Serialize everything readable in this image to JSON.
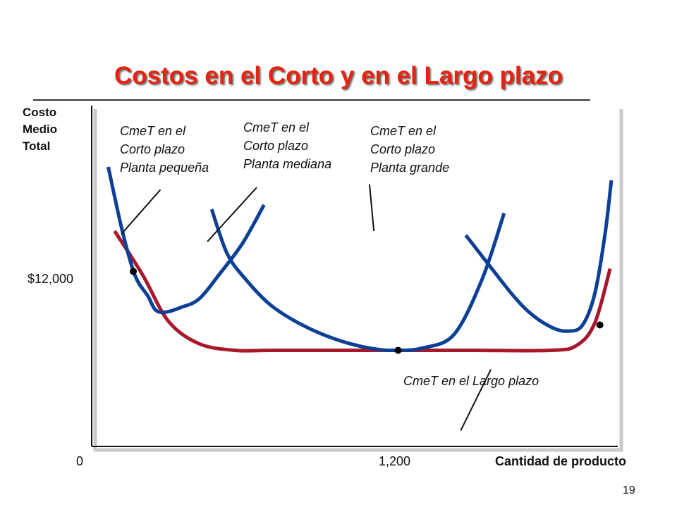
{
  "slide": {
    "title": "Costos en el Corto y en el Largo plazo",
    "page_number": "19",
    "title_color": "#e8220f"
  },
  "chart_data": {
    "type": "line",
    "title": "Costos en el Corto y en el Largo plazo",
    "ylabel": "Costo\nMedio\nTotal",
    "xlabel": "Cantidad de producto",
    "origin_label": "0",
    "x_tick": {
      "label": "1,200",
      "value": 1200
    },
    "y_tick": {
      "label": "$12,000",
      "value": 12000
    },
    "xlim": [
      0,
      2060
    ],
    "ylim": [
      8270,
      20500
    ],
    "grid": false,
    "series": [
      {
        "name": "CmeT en el Largo plazo",
        "role": "long_run",
        "color": "#a8182c",
        "x": [
          90,
          200,
          300,
          420,
          560,
          700,
          900,
          1200,
          1500,
          1800,
          1900,
          1970,
          2030
        ],
        "y": [
          16000,
          14420,
          12770,
          11960,
          11720,
          11720,
          11720,
          11720,
          11720,
          11720,
          11900,
          12700,
          14650
        ]
      },
      {
        "name": "CmeT en el Corto plazo Planta pequeña",
        "role": "short_run",
        "color": "#0b4096",
        "x": [
          65,
          120,
          170,
          220,
          250,
          290,
          350,
          420,
          500,
          590,
          675
        ],
        "y": [
          18300,
          16000,
          14400,
          13670,
          13170,
          13090,
          13260,
          13560,
          14450,
          15550,
          16940
        ]
      },
      {
        "name": "CmeT en el Corto plazo Planta mediana",
        "role": "short_run",
        "color": "#0b4096",
        "x": [
          470,
          530,
          600,
          700,
          820,
          960,
          1100,
          1200,
          1300,
          1420,
          1530,
          1615
        ],
        "y": [
          16780,
          15200,
          14300,
          13350,
          12650,
          12100,
          11780,
          11720,
          11810,
          12300,
          14300,
          16640
        ]
      },
      {
        "name": "CmeT en el Corto plazo Planta grande",
        "role": "short_run",
        "color": "#0b4096",
        "x": [
          1465,
          1560,
          1650,
          1720,
          1800,
          1860,
          1920,
          1970,
          2010,
          2035
        ],
        "y": [
          15850,
          14730,
          13690,
          13030,
          12550,
          12410,
          12600,
          13750,
          15880,
          17820
        ]
      }
    ],
    "tangency_points": [
      {
        "x": 163,
        "y": 14550
      },
      {
        "x": 1200,
        "y": 11720
      },
      {
        "x": 1990,
        "y": 12630
      }
    ],
    "annotations": [
      {
        "text": "CmeT en el\nCorto plazo\nPlanta pequeña",
        "line": [
          [
            117,
            15900
          ],
          [
            269,
            17480
          ]
        ]
      },
      {
        "text": "CmeT en el\nCorto plazo\nPlanta mediana",
        "line": [
          [
            453,
            15620
          ],
          [
            646,
            17560
          ]
        ]
      },
      {
        "text": "CmeT en el\nCorto plazo\nPlanta grande",
        "line": [
          [
            1105,
            16000
          ],
          [
            1088,
            17670
          ]
        ]
      },
      {
        "text": "CmeT en el Largo plazo",
        "line": [
          [
            1445,
            8840
          ],
          [
            1563,
            11030
          ]
        ]
      }
    ]
  }
}
